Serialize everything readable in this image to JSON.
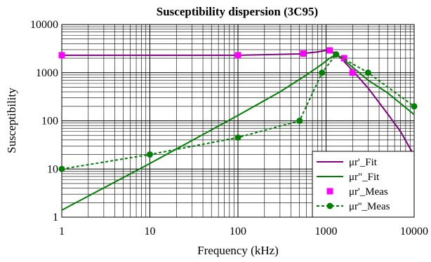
{
  "chart_data": {
    "type": "line",
    "title": "Susceptibility dispersion (3C95)",
    "xlabel": "Frequency (kHz)",
    "ylabel": "Susceptibility",
    "xscale": "log",
    "yscale": "log",
    "xlim": [
      1,
      10000
    ],
    "ylim": [
      1,
      10000
    ],
    "x_ticks": [
      "1",
      "10",
      "100",
      "1000",
      "10000"
    ],
    "y_ticks": [
      "1",
      "10",
      "100",
      "1000",
      "10000"
    ],
    "grid": true,
    "legend_position": "bottom-right",
    "series": [
      {
        "name": "μr'_Fit",
        "style": "solid-line",
        "color": "#800080",
        "points": [
          [
            1,
            2300
          ],
          [
            100,
            2300
          ],
          [
            500,
            2450
          ],
          [
            800,
            2700
          ],
          [
            1000,
            2900
          ],
          [
            1200,
            2700
          ],
          [
            1500,
            1950
          ],
          [
            2000,
            1100
          ],
          [
            3000,
            480
          ],
          [
            5000,
            140
          ],
          [
            7000,
            60
          ],
          [
            10000,
            19
          ]
        ]
      },
      {
        "name": "μr\"_Fit",
        "style": "solid-line",
        "color": "#008000",
        "points": [
          [
            1,
            1.4
          ],
          [
            10,
            13
          ],
          [
            100,
            130
          ],
          [
            300,
            400
          ],
          [
            600,
            900
          ],
          [
            900,
            1500
          ],
          [
            1100,
            2000
          ],
          [
            1300,
            2400
          ],
          [
            1500,
            2050
          ],
          [
            2000,
            1300
          ],
          [
            3000,
            700
          ],
          [
            5000,
            380
          ],
          [
            7000,
            230
          ],
          [
            10000,
            135
          ]
        ]
      },
      {
        "name": "μr'_Meas",
        "style": "square-markers",
        "color": "#ff00ff",
        "points": [
          [
            1,
            2300
          ],
          [
            100,
            2300
          ],
          [
            550,
            2500
          ],
          [
            1100,
            2900
          ],
          [
            1600,
            2000
          ],
          [
            2000,
            1000
          ]
        ]
      },
      {
        "name": "μr''_Meas",
        "style": "dotted-line-circles",
        "color": "#008000",
        "points": [
          [
            1,
            10
          ],
          [
            10,
            20
          ],
          [
            100,
            45
          ],
          [
            500,
            100
          ],
          [
            900,
            1000
          ],
          [
            1300,
            2400
          ],
          [
            3000,
            1000
          ],
          [
            10000,
            200
          ]
        ]
      }
    ]
  }
}
